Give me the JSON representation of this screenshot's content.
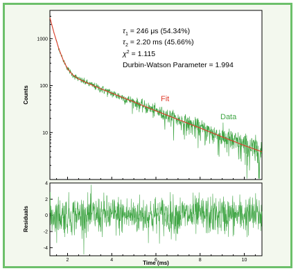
{
  "chart_data": [
    {
      "type": "line",
      "yscale": "log",
      "xlim": [
        1.2,
        10.8
      ],
      "ylim": [
        1,
        4000
      ],
      "x_ticks": [
        2,
        4,
        6,
        8,
        10
      ],
      "y_ticks": [
        10,
        100,
        1000
      ],
      "ylabel": "Counts",
      "series": [
        {
          "name": "Fit",
          "color": "#e03a2a",
          "x": [
            1.2,
            1.4,
            1.6,
            1.8,
            2.0,
            2.2,
            2.5,
            3.0,
            3.5,
            4.0,
            5.0,
            6.0,
            7.0,
            8.0,
            9.0,
            10.0,
            10.8
          ],
          "y": [
            2800,
            1260,
            620,
            350,
            230,
            175,
            138,
            108,
            86,
            69,
            45,
            29,
            19,
            12.5,
            8.1,
            5.3,
            3.9
          ]
        },
        {
          "name": "Data",
          "color": "#3fa544",
          "x": [
            1.2,
            1.4,
            1.6,
            1.8,
            2.0,
            2.2,
            2.5,
            3.0,
            3.5,
            4.0,
            5.0,
            6.0,
            7.0,
            8.0,
            9.0,
            10.0,
            10.8
          ],
          "y": [
            2800,
            1260,
            620,
            350,
            230,
            175,
            138,
            108,
            86,
            69,
            45,
            29,
            19,
            12.5,
            8.1,
            5.3,
            3.9
          ]
        }
      ],
      "annotations": {
        "line1": {
          "sym": "τ",
          "sub": "1",
          "text": " = 246 μs (54.34%)"
        },
        "line2": {
          "sym": "τ",
          "sub": "2",
          "text": " = 2.20 ms (45.66%)"
        },
        "line3": {
          "sym": "χ",
          "sup": "2",
          "text": " = 1.115"
        },
        "line4": {
          "text": "Durbin-Watson Parameter = 1.994"
        }
      }
    },
    {
      "type": "line",
      "xlim": [
        1.2,
        10.8
      ],
      "ylim": [
        -5,
        4
      ],
      "x_ticks": [
        2,
        4,
        6,
        8,
        10
      ],
      "y_ticks": [
        -4,
        -2,
        0,
        2,
        4
      ],
      "xlabel": "Time (ms)",
      "ylabel": "Residuals",
      "series": [
        {
          "color": "#3fa544",
          "mean": 0,
          "amplitude": 2
        }
      ]
    }
  ]
}
